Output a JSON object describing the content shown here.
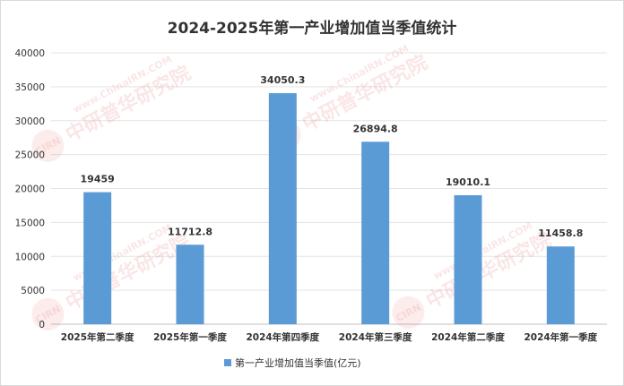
{
  "chart_data": {
    "type": "bar",
    "title": "2024-2025年第一产业增加值当季值统计",
    "categories": [
      "2025年第二季度",
      "2025年第一季度",
      "2024年第四季度",
      "2024年第三季度",
      "2024年第二季度",
      "2024年第一季度"
    ],
    "series": [
      {
        "name": "第一产业增加值当季值(亿元)",
        "values": [
          19459,
          11712.8,
          34050.3,
          26894.8,
          19010.1,
          11458.8
        ],
        "labels": [
          "19459",
          "11712.8",
          "34050.3",
          "26894.8",
          "19010.1",
          "11458.8"
        ],
        "color": "#5b9bd5"
      }
    ],
    "ylim": [
      0,
      40000
    ],
    "yticks": [
      0,
      5000,
      10000,
      15000,
      20000,
      25000,
      30000,
      35000,
      40000
    ],
    "grid": true,
    "legend": "bottom",
    "xlabel": "",
    "ylabel": ""
  },
  "watermark": {
    "text": "中研普华研究院",
    "url": "www.ChinaIRN.COM",
    "logo": "CIRN"
  }
}
